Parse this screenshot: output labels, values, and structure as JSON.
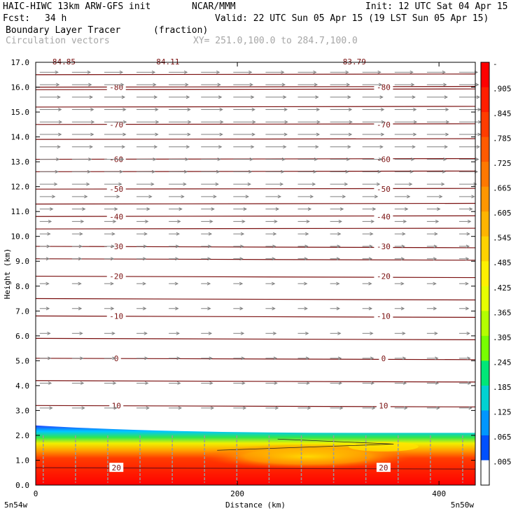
{
  "header": {
    "model": "HAIC-HIWC 13km ARW-GFS init",
    "org": "NCAR/MMM",
    "init": "Init: 12 UTC Sat 04 Apr 15",
    "fcst_label": "Fcst:",
    "fcst_value": "34 h",
    "valid": "Valid: 22 UTC Sun 05 Apr 15 (19 LST Sun 05 Apr 15)",
    "field": "Boundary Layer Tracer",
    "field_units": "(fraction)",
    "vectors": "Circulation vectors",
    "xsec": "XY= 251.0,100.0 to 284.7,100.0"
  },
  "chart_data": {
    "type": "heatmap",
    "xlabel": "Distance (km)",
    "ylabel": "Height (km)",
    "xlim": [
      0,
      436
    ],
    "ylim": [
      0,
      17
    ],
    "x_ticks": [
      "0",
      "200",
      "400"
    ],
    "x_tick_values": [
      0,
      200,
      400
    ],
    "y_ticks": [
      "0.0",
      "1.0",
      "2.0",
      "3.0",
      "4.0",
      "5.0",
      "6.0",
      "7.0",
      "8.0",
      "9.0",
      "10.0",
      "11.0",
      "12.0",
      "13.0",
      "14.0",
      "15.0",
      "16.0",
      "17.0"
    ],
    "y_tick_values": [
      0,
      1,
      2,
      3,
      4,
      5,
      6,
      7,
      8,
      9,
      10,
      11,
      12,
      13,
      14,
      15,
      16,
      17
    ],
    "x_endpoints": [
      "5n54w",
      "5n50w"
    ],
    "colorbar": {
      "labels": [
        "-",
        ".905",
        ".845",
        ".785",
        ".725",
        ".665",
        ".605",
        ".545",
        ".485",
        ".425",
        ".365",
        ".305",
        ".245",
        ".185",
        ".125",
        ".065",
        ".005"
      ],
      "colors": [
        "#ff0000",
        "#ff1e00",
        "#ff3c00",
        "#ff5a00",
        "#ff7800",
        "#ff9600",
        "#ffb400",
        "#ffd200",
        "#fff000",
        "#e6ff00",
        "#b4ff00",
        "#78ff00",
        "#00e678",
        "#00d2d2",
        "#0096ff",
        "#0050ff",
        "#ffffff"
      ]
    },
    "tracer_layer": {
      "top_height_left_km": 2.4,
      "top_height_right_km": 2.1,
      "notes_colors": {
        "blue": "#1e3cff",
        "cyan": "#00d2ff",
        "green": "#28e650",
        "yellow": "#ffe600",
        "orange": "#ff9600",
        "red": "#ff1e00"
      }
    },
    "temperature_contours": [
      {
        "value": "-80",
        "height_km": 16.0
      },
      {
        "value": "-70",
        "height_km": 14.5
      },
      {
        "value": "-60",
        "height_km": 13.1
      },
      {
        "value": "-50",
        "height_km": 11.9
      },
      {
        "value": "-40",
        "height_km": 10.8
      },
      {
        "value": "-30",
        "height_km": 9.6
      },
      {
        "value": "-20",
        "height_km": 8.4
      },
      {
        "value": "-10",
        "height_km": 6.8
      },
      {
        "value": "0",
        "height_km": 5.1
      },
      {
        "value": "10",
        "height_km": 3.2
      },
      {
        "value": "20",
        "height_km": 0.7
      }
    ],
    "unlabeled_contours_km": [
      16.5,
      15.9,
      15.2,
      13.9,
      12.6,
      11.3,
      10.3,
      9.1,
      7.5,
      5.9,
      4.2
    ],
    "top_labels": [
      "-84.85",
      "-84.11",
      "-83.79"
    ],
    "top_labels_x_km": [
      12,
      115,
      300
    ],
    "vectors": [
      {
        "z_km": 16.6,
        "u": 1.0
      },
      {
        "z_km": 16.1,
        "u": 1.1
      },
      {
        "z_km": 15.6,
        "u": 1.2
      },
      {
        "z_km": 15.1,
        "u": 1.3
      },
      {
        "z_km": 14.6,
        "u": 1.35
      },
      {
        "z_km": 14.1,
        "u": 1.3
      },
      {
        "z_km": 13.6,
        "u": 1.2
      },
      {
        "z_km": 13.1,
        "u": 1.1
      },
      {
        "z_km": 12.6,
        "u": 1.0
      },
      {
        "z_km": 12.1,
        "u": 0.9
      },
      {
        "z_km": 11.6,
        "u": 0.7
      },
      {
        "z_km": 11.1,
        "u": 0.5
      },
      {
        "z_km": 10.6,
        "u": 0.35
      },
      {
        "z_km": 10.1,
        "u": 0.25
      },
      {
        "z_km": 9.6,
        "u": 0.2
      },
      {
        "z_km": 9.1,
        "u": 0.15
      },
      {
        "z_km": 8.1,
        "u": 0.12
      },
      {
        "z_km": 7.1,
        "u": 0.15
      },
      {
        "z_km": 6.1,
        "u": 0.25
      },
      {
        "z_km": 5.1,
        "u": 0.3
      },
      {
        "z_km": 4.1,
        "u": 0.35
      },
      {
        "z_km": 3.1,
        "u": 0.45
      }
    ]
  }
}
